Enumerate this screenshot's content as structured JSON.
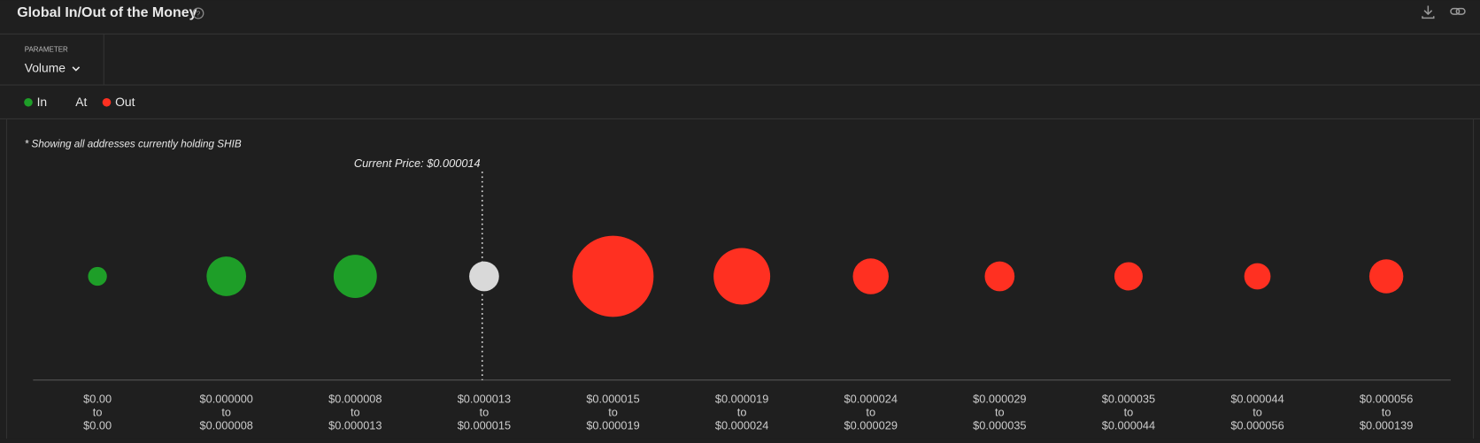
{
  "header": {
    "title": "Global In/Out of the Money"
  },
  "parameter": {
    "label": "PARAMETER",
    "value": "Volume"
  },
  "legend": [
    {
      "name": "In",
      "color": "#1e9e28"
    },
    {
      "name": "At",
      "color": "#d9d9d9"
    },
    {
      "name": "Out",
      "color": "#ff3021"
    }
  ],
  "chart_data": {
    "type": "bubble",
    "note": "* Showing all addresses currently holding SHIB",
    "current_price_label": "Current Price: $0.000014",
    "range_word": "to",
    "categories": [
      {
        "from": "$0.00",
        "to": "$0.00"
      },
      {
        "from": "$0.000000",
        "to": "$0.000008"
      },
      {
        "from": "$0.000008",
        "to": "$0.000013"
      },
      {
        "from": "$0.000013",
        "to": "$0.000015"
      },
      {
        "from": "$0.000015",
        "to": "$0.000019"
      },
      {
        "from": "$0.000019",
        "to": "$0.000024"
      },
      {
        "from": "$0.000024",
        "to": "$0.000029"
      },
      {
        "from": "$0.000029",
        "to": "$0.000035"
      },
      {
        "from": "$0.000035",
        "to": "$0.000044"
      },
      {
        "from": "$0.000044",
        "to": "$0.000056"
      },
      {
        "from": "$0.000056",
        "to": "$0.000139"
      }
    ],
    "status": [
      0,
      0,
      0,
      1,
      2,
      2,
      2,
      2,
      2,
      2,
      2
    ],
    "current_index": 3,
    "values": [
      4,
      17.6,
      21,
      10,
      74,
      36,
      14.4,
      10,
      9,
      7.8,
      13
    ]
  }
}
